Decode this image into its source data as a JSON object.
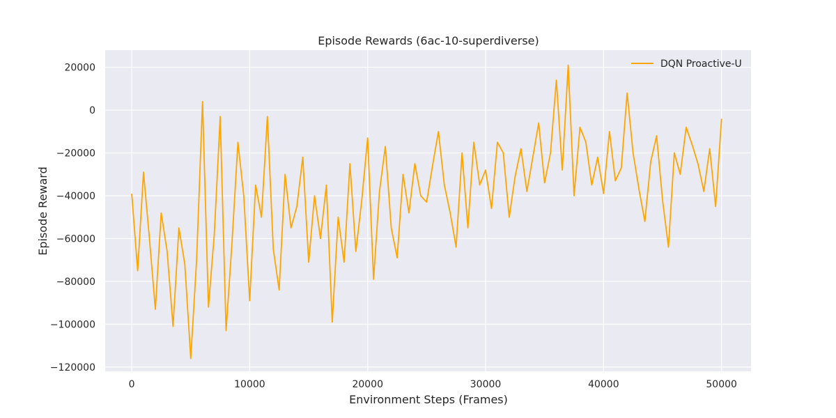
{
  "chart_data": {
    "type": "line",
    "title": "Episode Rewards (6ac-10-superdiverse)",
    "xlabel": "Environment Steps (Frames)",
    "ylabel": "Episode Reward",
    "xlim": [
      -2250,
      52500
    ],
    "ylim": [
      -122000,
      28000
    ],
    "x_ticks": [
      0,
      10000,
      20000,
      30000,
      40000,
      50000
    ],
    "y_ticks": [
      -120000,
      -100000,
      -80000,
      -60000,
      -40000,
      -20000,
      0,
      20000
    ],
    "grid": true,
    "background": "#eaeaf2",
    "grid_color": "#ffffff",
    "legend": {
      "placement": "top-right"
    },
    "series": [
      {
        "name": "DQN Proactive-U",
        "color": "#ffa500",
        "x": [
          0,
          500,
          1000,
          1500,
          2000,
          2500,
          3000,
          3500,
          4000,
          4500,
          5000,
          5500,
          6000,
          6500,
          7000,
          7500,
          8000,
          8500,
          9000,
          9500,
          10000,
          10500,
          11000,
          11500,
          12000,
          12500,
          13000,
          13500,
          14000,
          14500,
          15000,
          15500,
          16000,
          16500,
          17000,
          17500,
          18000,
          18500,
          19000,
          19500,
          20000,
          20500,
          21000,
          21500,
          22000,
          22500,
          23000,
          23500,
          24000,
          24500,
          25000,
          25500,
          26000,
          26500,
          27000,
          27500,
          28000,
          28500,
          29000,
          29500,
          30000,
          30500,
          31000,
          31500,
          32000,
          32500,
          33000,
          33500,
          34000,
          34500,
          35000,
          35500,
          36000,
          36500,
          37000,
          37500,
          38000,
          38500,
          39000,
          39500,
          40000,
          40500,
          41000,
          41500,
          42000,
          42500,
          43000,
          43500,
          44000,
          44500,
          45000,
          45500,
          46000,
          46500,
          47000,
          47500,
          48000,
          48500,
          49000,
          49500,
          50000
        ],
        "y": [
          -39000,
          -75000,
          -29000,
          -60000,
          -93000,
          -48000,
          -66000,
          -101000,
          -55000,
          -72000,
          -116000,
          -70000,
          4000,
          -92000,
          -58000,
          -3000,
          -103000,
          -62000,
          -15000,
          -40000,
          -89000,
          -35000,
          -50000,
          -3000,
          -65000,
          -84000,
          -30000,
          -55000,
          -45000,
          -22000,
          -71000,
          -40000,
          -60000,
          -35000,
          -99000,
          -50000,
          -71000,
          -25000,
          -66000,
          -42000,
          -13000,
          -79000,
          -38000,
          -17000,
          -55000,
          -69000,
          -30000,
          -48000,
          -25000,
          -40000,
          -43000,
          -26000,
          -10000,
          -35000,
          -48000,
          -64000,
          -20000,
          -55000,
          -15000,
          -35000,
          -28000,
          -46000,
          -15000,
          -20000,
          -50000,
          -31000,
          -18000,
          -38000,
          -22000,
          -6000,
          -34000,
          -20000,
          14000,
          -28000,
          21000,
          -40000,
          -8000,
          -15000,
          -35000,
          -22000,
          -39000,
          -10000,
          -33000,
          -27000,
          8000,
          -20000,
          -37000,
          -52000,
          -24000,
          -12000,
          -42000,
          -64000,
          -20000,
          -30000,
          -8000,
          -16000,
          -25000,
          -38000,
          -18000,
          -45000,
          -4000
        ]
      }
    ]
  }
}
